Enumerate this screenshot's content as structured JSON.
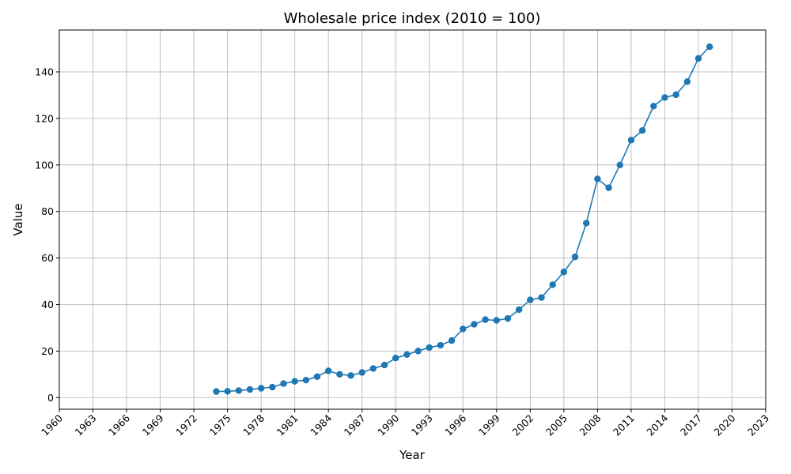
{
  "chart_data": {
    "type": "line",
    "title": "Wholesale price index (2010 = 100)",
    "xlabel": "Year",
    "ylabel": "Value",
    "xlim": [
      1960,
      2023
    ],
    "ylim": [
      -5,
      158
    ],
    "xticks": [
      1960,
      1963,
      1966,
      1969,
      1972,
      1975,
      1978,
      1981,
      1984,
      1987,
      1990,
      1993,
      1996,
      1999,
      2002,
      2005,
      2008,
      2011,
      2014,
      2017,
      2020,
      2023
    ],
    "yticks": [
      0,
      20,
      40,
      60,
      80,
      100,
      120,
      140
    ],
    "grid": true,
    "color": "#1f77b4",
    "markers": true,
    "series": [
      {
        "x": [
          1974,
          1975,
          1976,
          1977,
          1978,
          1979,
          1980,
          1981,
          1982,
          1983,
          1984,
          1985,
          1986,
          1987,
          1988,
          1989,
          1990,
          1991,
          1992,
          1993,
          1994,
          1995,
          1996,
          1997,
          1998,
          1999,
          2000,
          2001,
          2002,
          2003,
          2004,
          2005,
          2006,
          2007,
          2008,
          2009,
          2010,
          2011,
          2012,
          2013,
          2014,
          2015,
          2016,
          2017,
          2018
        ],
        "y": [
          2.6,
          2.7,
          3.0,
          3.5,
          4.0,
          4.5,
          6.0,
          7.0,
          7.5,
          9.0,
          11.5,
          10.0,
          9.5,
          10.8,
          12.5,
          14.0,
          17.0,
          18.5,
          20.0,
          21.5,
          22.5,
          24.5,
          29.5,
          31.5,
          33.5,
          33.2,
          34.0,
          37.8,
          42.0,
          43.0,
          48.5,
          54.0,
          60.5,
          75.0,
          94.0,
          90.2,
          100.0,
          110.7,
          114.8,
          125.3,
          129.0,
          130.2,
          135.8,
          145.8,
          150.8
        ]
      }
    ]
  }
}
